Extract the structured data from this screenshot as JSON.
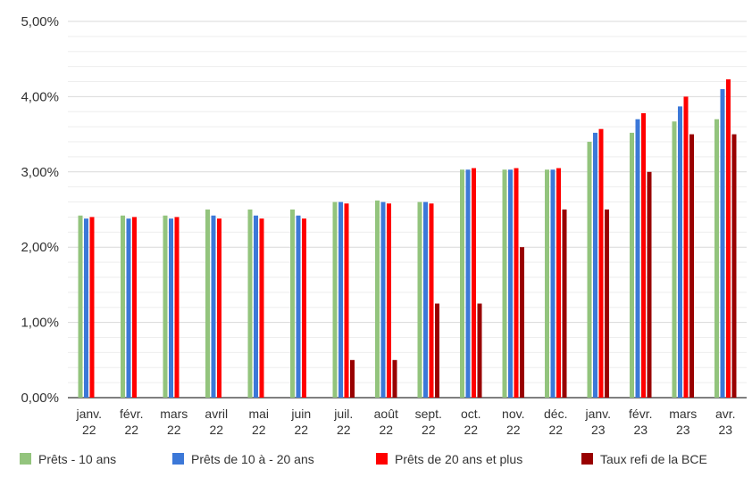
{
  "chart_data": {
    "type": "bar",
    "title": "",
    "xlabel": "",
    "ylabel": "",
    "ylim": [
      0,
      5
    ],
    "y_ticks": [
      "0,00%",
      "1,00%",
      "2,00%",
      "3,00%",
      "4,00%",
      "5,00%"
    ],
    "grid": true,
    "legend_position": "bottom",
    "categories": [
      [
        "janv.",
        "22"
      ],
      [
        "févr.",
        "22"
      ],
      [
        "mars",
        "22"
      ],
      [
        "avril",
        "22"
      ],
      [
        "mai",
        "22"
      ],
      [
        "juin",
        "22"
      ],
      [
        "juil.",
        "22"
      ],
      [
        "août",
        "22"
      ],
      [
        "sept.",
        "22"
      ],
      [
        "oct.",
        "22"
      ],
      [
        "nov.",
        "22"
      ],
      [
        "déc.",
        "22"
      ],
      [
        "janv.",
        "23"
      ],
      [
        "févr.",
        "23"
      ],
      [
        "mars",
        "23"
      ],
      [
        "avr.",
        "23"
      ]
    ],
    "series": [
      {
        "name": "Prêts - 10 ans",
        "color": "#93c47d",
        "values": [
          2.42,
          2.42,
          2.42,
          2.5,
          2.5,
          2.5,
          2.6,
          2.62,
          2.6,
          3.03,
          3.03,
          3.03,
          3.4,
          3.52,
          3.67,
          3.7
        ]
      },
      {
        "name": "Prêts de 10 à - 20 ans",
        "color": "#3c78d8",
        "values": [
          2.38,
          2.38,
          2.38,
          2.42,
          2.42,
          2.42,
          2.6,
          2.6,
          2.6,
          3.03,
          3.03,
          3.03,
          3.52,
          3.7,
          3.87,
          4.1
        ]
      },
      {
        "name": "Prêts de 20 ans et plus",
        "color": "#ff0000",
        "values": [
          2.4,
          2.4,
          2.4,
          2.38,
          2.38,
          2.38,
          2.58,
          2.58,
          2.58,
          3.05,
          3.05,
          3.05,
          3.57,
          3.78,
          4.0,
          4.23
        ]
      },
      {
        "name": "Taux refi de la BCE",
        "color": "#990000",
        "values": [
          0.0,
          0.0,
          0.0,
          0.0,
          0.0,
          0.0,
          0.5,
          0.5,
          1.25,
          1.25,
          2.0,
          2.5,
          2.5,
          3.0,
          3.5,
          3.5
        ]
      }
    ]
  }
}
